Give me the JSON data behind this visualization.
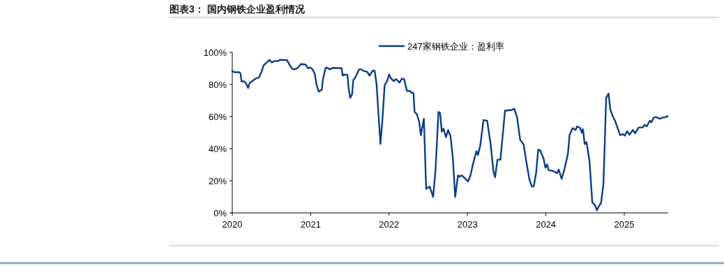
{
  "chart_data": {
    "type": "line",
    "title": "图表3：  国内钢铁企业盈利情况",
    "xlim": [
      2020,
      2025.56
    ],
    "xticks": [
      2020,
      2021,
      2022,
      2023,
      2024,
      2025
    ],
    "ylim": [
      0,
      100
    ],
    "yticks": [
      {
        "value": 0,
        "label": "0%"
      },
      {
        "value": 20,
        "label": "20%"
      },
      {
        "value": 40,
        "label": "40%"
      },
      {
        "value": 60,
        "label": "60%"
      },
      {
        "value": 80,
        "label": "80%"
      },
      {
        "value": 100,
        "label": "100%"
      }
    ],
    "grid": false,
    "legend": "top",
    "marker": "none",
    "line_style": "solid",
    "series": [
      {
        "name": "247家钢铁企业：盈利率",
        "color": "#0b3d86",
        "x": [
          2020.0,
          2020.03,
          2020.089,
          2020.104,
          2020.119,
          2020.148,
          2020.172,
          2020.202,
          2020.223,
          2020.297,
          2020.341,
          2020.371,
          2020.401,
          2020.475,
          2020.504,
          2020.534,
          2020.579,
          2020.608,
          2020.697,
          2020.757,
          2020.786,
          2020.831,
          2020.875,
          2020.935,
          2020.964,
          2020.994,
          2021.024,
          2021.053,
          2021.074,
          2021.101,
          2021.142,
          2021.157,
          2021.187,
          2021.202,
          2021.246,
          2021.276,
          2021.395,
          2021.409,
          2021.424,
          2021.469,
          2021.484,
          2021.504,
          2021.528,
          2021.543,
          2021.573,
          2021.617,
          2021.647,
          2021.677,
          2021.721,
          2021.751,
          2021.795,
          2021.816,
          2021.84,
          2021.869,
          2021.89,
          2021.914,
          2021.944,
          2021.973,
          2022.0,
          2022.021,
          2022.059,
          2022.089,
          2022.133,
          2022.163,
          2022.192,
          2022.228,
          2022.266,
          2022.281,
          2022.311,
          2022.325,
          2022.355,
          2022.385,
          2022.405,
          2022.444,
          2022.473,
          2022.518,
          2022.562,
          2022.592,
          2022.63,
          2022.651,
          2022.672,
          2022.695,
          2022.725,
          2022.754,
          2022.784,
          2022.814,
          2022.843,
          2022.879,
          2022.896,
          2022.926,
          2022.962,
          2023.006,
          2023.036,
          2023.08,
          2023.115,
          2023.133,
          2023.163,
          2023.204,
          2023.251,
          2023.296,
          2023.331,
          2023.352,
          2023.382,
          2023.42,
          2023.479,
          2023.553,
          2023.598,
          2023.633,
          2023.672,
          2023.716,
          2023.746,
          2023.79,
          2023.822,
          2023.846,
          2023.876,
          2023.902,
          2023.926,
          2023.97,
          2023.994,
          2024.015,
          2024.036,
          2024.089,
          2024.142,
          2024.163,
          2024.201,
          2024.237,
          2024.281,
          2024.302,
          2024.34,
          2024.379,
          2024.399,
          2024.438,
          2024.459,
          2024.473,
          2024.494,
          2024.518,
          2024.556,
          2024.592,
          2024.627,
          2024.651,
          2024.675,
          2024.704,
          2024.734,
          2024.769,
          2024.799,
          2024.822,
          2024.852,
          2024.882,
          2024.947,
          2024.982,
          2025.006,
          2025.036,
          2025.065,
          2025.109,
          2025.139,
          2025.183,
          2025.237,
          2025.257,
          2025.287,
          2025.325,
          2025.346,
          2025.376,
          2025.405,
          2025.45,
          2025.485,
          2025.524,
          2025.553
        ],
        "values": [
          88.4,
          87.6,
          87.6,
          87,
          81.8,
          82,
          81,
          77.8,
          81,
          83.6,
          84.3,
          87.6,
          92,
          95.3,
          93.7,
          94.5,
          94.5,
          95.3,
          95.2,
          90.1,
          89.4,
          90.1,
          92.7,
          92.4,
          90.1,
          90.6,
          89.4,
          86.5,
          80,
          75.6,
          76.7,
          83.3,
          89.8,
          90.6,
          89.4,
          90.3,
          90.1,
          85.5,
          86.2,
          85.9,
          77.5,
          71.7,
          73.8,
          82.6,
          84.7,
          89.4,
          89.4,
          88.4,
          87.9,
          85.5,
          88.8,
          88.4,
          80.4,
          58.6,
          42.9,
          57.1,
          79.7,
          81.8,
          86.2,
          84,
          82.1,
          83.3,
          81.1,
          83.6,
          83.3,
          76,
          76,
          75,
          74.6,
          62.9,
          61.5,
          56.4,
          48.4,
          58.6,
          15,
          16.4,
          9.9,
          26.6,
          62.9,
          62.2,
          50.6,
          52.5,
          47.2,
          51.6,
          47.7,
          33.9,
          9.9,
          23.4,
          22.5,
          23.4,
          21.8,
          19.6,
          23,
          32.4,
          38.5,
          36,
          41.9,
          57.8,
          57.4,
          42.6,
          25.9,
          22.2,
          33.1,
          33.1,
          63.7,
          64,
          64.8,
          59.3,
          45.5,
          42.6,
          33.1,
          20.8,
          16.4,
          16.7,
          25.1,
          39.4,
          39,
          33.9,
          28.1,
          30.2,
          26.6,
          26.2,
          24.7,
          27,
          21.2,
          27.3,
          36.8,
          48.4,
          52.8,
          51.6,
          53.9,
          52.8,
          49.9,
          52.1,
          42.9,
          44.1,
          32.4,
          6.5,
          4.8,
          1.6,
          4.1,
          6.3,
          17.9,
          71.7,
          74.3,
          64.4,
          60.3,
          57.4,
          48.4,
          49.1,
          48.1,
          50.9,
          48.7,
          51.6,
          49.6,
          53.2,
          53.2,
          54.9,
          53.9,
          57.4,
          56.4,
          59.3,
          59.7,
          58.6,
          59.3,
          59.6,
          60.3
        ]
      }
    ]
  }
}
